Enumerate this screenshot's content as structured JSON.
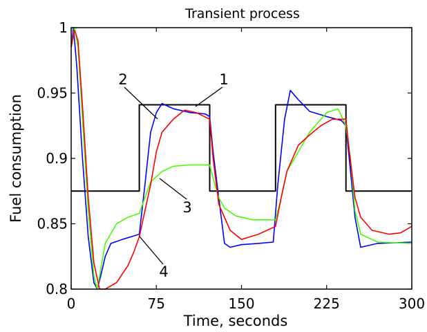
{
  "chart_data": {
    "type": "line",
    "title": "Transient process",
    "xlabel": "Time, seconds",
    "ylabel": "Fuel consumption",
    "xlim": [
      0,
      300
    ],
    "ylim": [
      0.8,
      1.0
    ],
    "xticks": [
      "0",
      "75",
      "150",
      "225",
      "300"
    ],
    "yticks": [
      "0.8",
      "0.85",
      "0.9",
      "0.95",
      "1"
    ],
    "grid": false,
    "series": [
      {
        "id": "black",
        "color": "#000000",
        "x": [
          0,
          60,
          60,
          122,
          122,
          180,
          180,
          242,
          242,
          300
        ],
        "y": [
          0.875,
          0.875,
          0.941,
          0.941,
          0.875,
          0.875,
          0.941,
          0.941,
          0.875,
          0.875
        ]
      },
      {
        "id": "blue",
        "color": "#0000ff",
        "x": [
          0,
          2,
          5,
          10,
          15,
          20,
          23,
          26,
          30,
          35,
          45,
          60,
          65,
          70,
          75,
          80,
          90,
          105,
          118,
          122,
          125,
          130,
          135,
          140,
          150,
          165,
          178,
          182,
          188,
          193,
          200,
          210,
          225,
          238,
          242,
          246,
          250,
          255,
          270,
          300
        ],
        "y": [
          0.985,
          1.0,
          0.97,
          0.9,
          0.84,
          0.805,
          0.8,
          0.81,
          0.825,
          0.835,
          0.838,
          0.842,
          0.88,
          0.92,
          0.935,
          0.942,
          0.938,
          0.935,
          0.934,
          0.932,
          0.905,
          0.87,
          0.835,
          0.832,
          0.834,
          0.835,
          0.836,
          0.88,
          0.93,
          0.952,
          0.945,
          0.936,
          0.932,
          0.929,
          0.925,
          0.89,
          0.855,
          0.832,
          0.835,
          0.836
        ]
      },
      {
        "id": "green",
        "color": "#44ff00",
        "x": [
          0,
          3,
          6,
          10,
          15,
          20,
          23,
          26,
          30,
          40,
          50,
          60,
          65,
          70,
          80,
          90,
          105,
          122,
          125,
          130,
          135,
          145,
          160,
          180,
          185,
          190,
          200,
          210,
          225,
          235,
          242,
          246,
          250,
          255,
          270,
          300
        ],
        "y": [
          0.985,
          1.0,
          0.985,
          0.93,
          0.86,
          0.81,
          0.8,
          0.815,
          0.835,
          0.85,
          0.855,
          0.858,
          0.87,
          0.882,
          0.89,
          0.894,
          0.895,
          0.895,
          0.885,
          0.87,
          0.862,
          0.856,
          0.853,
          0.853,
          0.87,
          0.89,
          0.905,
          0.92,
          0.935,
          0.938,
          0.925,
          0.9,
          0.86,
          0.842,
          0.836,
          0.835
        ]
      },
      {
        "id": "red",
        "color": "#ff0000",
        "x": [
          0,
          3,
          6,
          10,
          15,
          20,
          25,
          30,
          40,
          50,
          55,
          60,
          65,
          70,
          75,
          80,
          90,
          100,
          110,
          122,
          125,
          130,
          140,
          150,
          165,
          180,
          185,
          190,
          200,
          210,
          220,
          230,
          242,
          245,
          250,
          255,
          265,
          280,
          290,
          300
        ],
        "y": [
          0.985,
          0.998,
          0.99,
          0.94,
          0.87,
          0.82,
          0.8,
          0.8,
          0.805,
          0.818,
          0.828,
          0.84,
          0.86,
          0.88,
          0.905,
          0.92,
          0.93,
          0.937,
          0.935,
          0.93,
          0.9,
          0.865,
          0.845,
          0.838,
          0.842,
          0.848,
          0.87,
          0.89,
          0.91,
          0.918,
          0.925,
          0.93,
          0.93,
          0.905,
          0.87,
          0.855,
          0.845,
          0.842,
          0.843,
          0.848
        ]
      }
    ],
    "annotations": [
      {
        "label": "1",
        "text_at": [
          1,
          0.966
        ],
        "line_from": [
          0.5,
          0.961
        ],
        "line_to": [
          -11,
          0.942
        ]
      },
      {
        "label": "2",
        "text_at": [
          -13,
          0.966
        ],
        "line_from": [
          -12.5,
          0.961
        ],
        "line_to": [
          1.5,
          0.938
        ]
      },
      {
        "label": "3",
        "text_at": [
          -10,
          0.868
        ],
        "line_from": [
          -9.7,
          0.874
        ],
        "line_to": [
          -11,
          0.885
        ]
      },
      {
        "label": "4",
        "text_at": [
          -12,
          0.81
        ],
        "line_from": [
          -11.8,
          0.818
        ],
        "line_to": [
          -1,
          0.84
        ]
      }
    ]
  }
}
